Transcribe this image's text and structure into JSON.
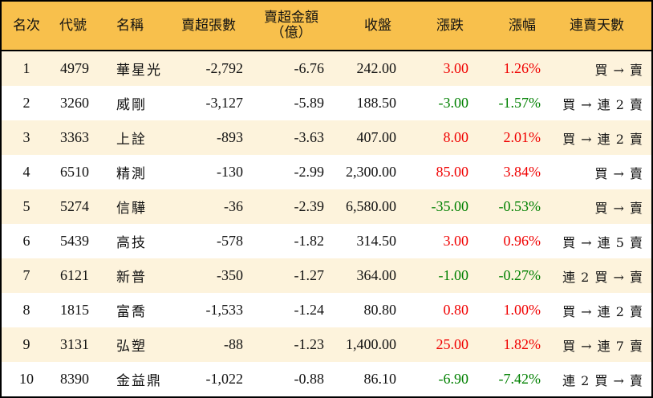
{
  "header": {
    "rank": "名次",
    "code": "代號",
    "name": "名稱",
    "net_sell_lots": "賣超張數",
    "net_sell_amount_line1": "賣超金額",
    "net_sell_amount_line2": "（億）",
    "close": "收盤",
    "change": "漲跌",
    "change_pct": "漲幅",
    "streak": "連賣天數"
  },
  "colors": {
    "header_bg": "#f8c04c",
    "row_alt_bg": "#fdf3dc",
    "up": "#f00000",
    "down": "#008000"
  },
  "rows": [
    {
      "rank": "1",
      "code": "4979",
      "name": "華星光",
      "lots": "-2,792",
      "amount": "-6.76",
      "close": "242.00",
      "change": "3.00",
      "pct": "1.26%",
      "dir": "up",
      "streak": "買 → 賣"
    },
    {
      "rank": "2",
      "code": "3260",
      "name": "威剛",
      "lots": "-3,127",
      "amount": "-5.89",
      "close": "188.50",
      "change": "-3.00",
      "pct": "-1.57%",
      "dir": "down",
      "streak": "買 → 連 2 賣"
    },
    {
      "rank": "3",
      "code": "3363",
      "name": "上詮",
      "lots": "-893",
      "amount": "-3.63",
      "close": "407.00",
      "change": "8.00",
      "pct": "2.01%",
      "dir": "up",
      "streak": "買 → 連 2 賣"
    },
    {
      "rank": "4",
      "code": "6510",
      "name": "精測",
      "lots": "-130",
      "amount": "-2.99",
      "close": "2,300.00",
      "change": "85.00",
      "pct": "3.84%",
      "dir": "up",
      "streak": "買 → 賣"
    },
    {
      "rank": "5",
      "code": "5274",
      "name": "信驊",
      "lots": "-36",
      "amount": "-2.39",
      "close": "6,580.00",
      "change": "-35.00",
      "pct": "-0.53%",
      "dir": "down",
      "streak": "買 → 賣"
    },
    {
      "rank": "6",
      "code": "5439",
      "name": "高技",
      "lots": "-578",
      "amount": "-1.82",
      "close": "314.50",
      "change": "3.00",
      "pct": "0.96%",
      "dir": "up",
      "streak": "買 → 連 5 賣"
    },
    {
      "rank": "7",
      "code": "6121",
      "name": "新普",
      "lots": "-350",
      "amount": "-1.27",
      "close": "364.00",
      "change": "-1.00",
      "pct": "-0.27%",
      "dir": "down",
      "streak": "連 2 買 → 賣"
    },
    {
      "rank": "8",
      "code": "1815",
      "name": "富喬",
      "lots": "-1,533",
      "amount": "-1.24",
      "close": "80.80",
      "change": "0.80",
      "pct": "1.00%",
      "dir": "up",
      "streak": "買 → 連 2 賣"
    },
    {
      "rank": "9",
      "code": "3131",
      "name": "弘塑",
      "lots": "-88",
      "amount": "-1.23",
      "close": "1,400.00",
      "change": "25.00",
      "pct": "1.82%",
      "dir": "up",
      "streak": "買 → 連 7 賣"
    },
    {
      "rank": "10",
      "code": "8390",
      "name": "金益鼎",
      "lots": "-1,022",
      "amount": "-0.88",
      "close": "86.10",
      "change": "-6.90",
      "pct": "-7.42%",
      "dir": "down",
      "streak": "連 2 買 → 賣"
    }
  ]
}
